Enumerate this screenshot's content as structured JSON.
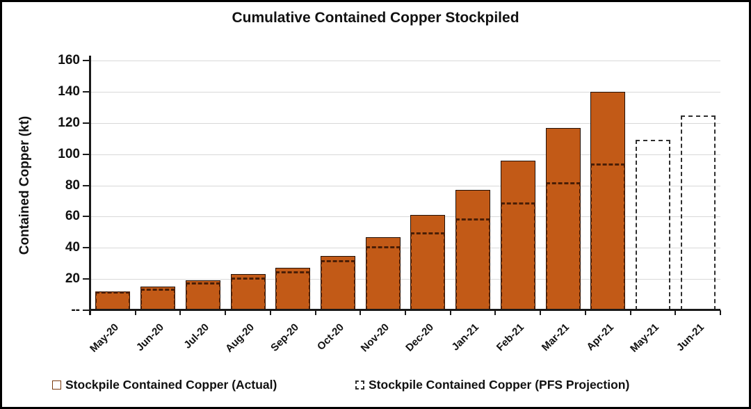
{
  "title": "Cumulative Contained Copper Stockpiled",
  "ylabel": "Contained Copper (kt)",
  "legend": [
    {
      "label": "Stockpile Contained Copper (Actual)",
      "swatch": "solid-orange-square-icon"
    },
    {
      "label": "Stockpile Contained Copper (PFS Projection)",
      "swatch": "dashed-outline-square-icon"
    }
  ],
  "colors": {
    "bar_fill": "#c25a17",
    "bar_border": "#201008",
    "pfs_dash_on_bar": "#4a1e06",
    "pfs_dash_solo": "#2e2e2e",
    "gridline": "#d8d8d8",
    "axis": "#1a1a1a",
    "text": "#111111"
  },
  "chart_data": {
    "type": "bar",
    "title": "Cumulative Contained Copper Stockpiled",
    "xlabel": "",
    "ylabel": "Contained Copper (kt)",
    "ylim": [
      0,
      160
    ],
    "ytick_step": 20,
    "yticks_labels": [
      "--",
      "20",
      "40",
      "60",
      "80",
      "100",
      "120",
      "140",
      "160"
    ],
    "grid": true,
    "legend_position": "bottom",
    "categories": [
      "May-20",
      "Jun-20",
      "Jul-20",
      "Aug-20",
      "Sep-20",
      "Oct-20",
      "Nov-20",
      "Dec-20",
      "Jan-21",
      "Feb-21",
      "Mar-21",
      "Apr-21",
      "May-21",
      "Jun-21"
    ],
    "series": [
      {
        "name": "Stockpile Contained Copper (Actual)",
        "style": "solid-filled-bar",
        "values": [
          12,
          15,
          19,
          23,
          27,
          35,
          47,
          61,
          77,
          96,
          117,
          140,
          null,
          null
        ]
      },
      {
        "name": "Stockpile Contained Copper (PFS Projection)",
        "style": "dashed-outline-bar",
        "values": [
          12,
          14,
          18,
          21,
          25,
          32,
          41,
          50,
          59,
          69,
          82,
          94,
          109,
          125
        ]
      }
    ]
  }
}
